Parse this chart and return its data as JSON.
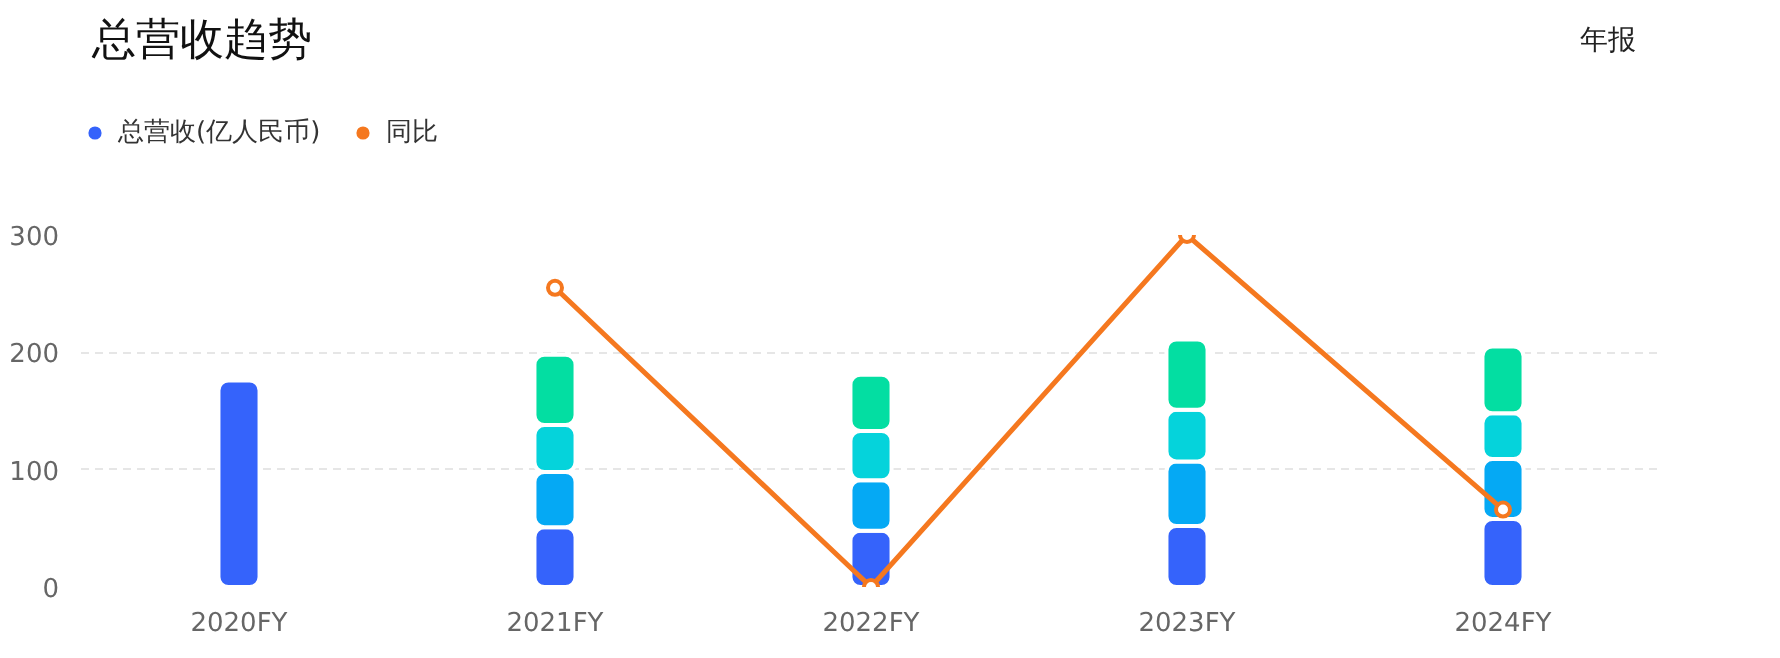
{
  "chart_data": {
    "type": "bar",
    "title": "总营收趋势",
    "annotations": [
      "年报"
    ],
    "categories": [
      "2020FY",
      "2021FY",
      "2022FY",
      "2023FY",
      "2024FY"
    ],
    "stacked": true,
    "series": [
      {
        "name": "总营收(亿人民币)",
        "color": "#3563fb",
        "values": [
          176,
          51,
          48,
          52,
          58
        ]
      },
      {
        "color": "#05a9f4",
        "values": [
          null,
          47,
          43,
          55,
          51
        ]
      },
      {
        "color": "#05d3db",
        "values": [
          null,
          40,
          42,
          44,
          39
        ]
      },
      {
        "color": "#03dea2",
        "values": [
          null,
          60,
          48,
          60,
          57
        ]
      },
      {
        "name": "同比",
        "type": "line",
        "color": "#f5781f",
        "values": [
          null,
          255,
          0,
          300,
          66
        ],
        "marker": "circle"
      }
    ],
    "ylim": [
      0,
      300
    ],
    "yticks": [
      0,
      100,
      200,
      300
    ],
    "grid": "y",
    "legend": "top left"
  }
}
